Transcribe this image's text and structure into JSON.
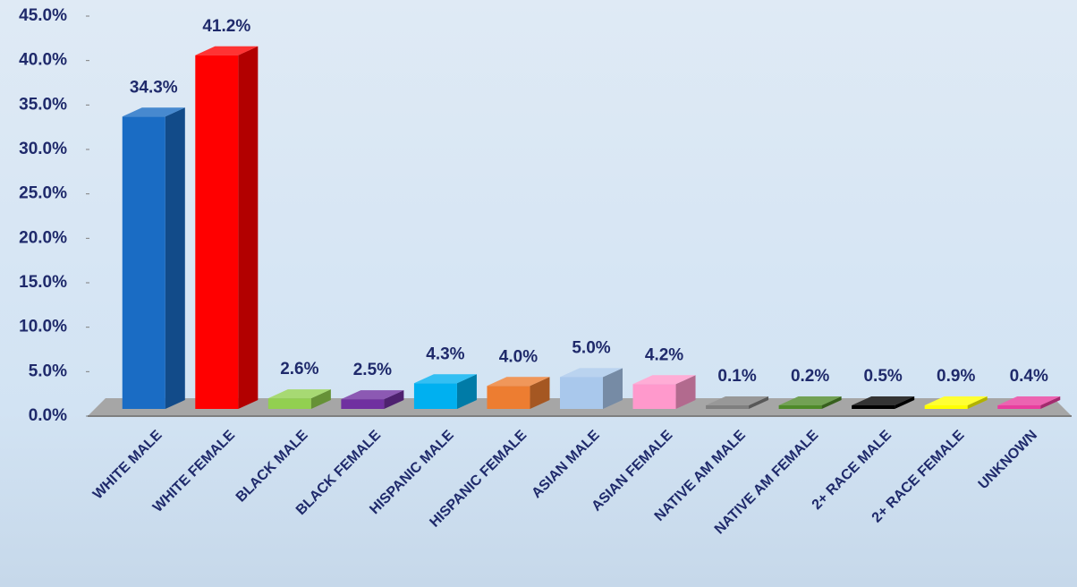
{
  "chart_data": {
    "type": "bar",
    "categories": [
      "WHITE MALE",
      "WHITE FEMALE",
      "BLACK MALE",
      "BLACK FEMALE",
      "HISPANIC MALE",
      "HISPANIC FEMALE",
      "ASIAN MALE",
      "ASIAN FEMALE",
      "NATIVE AM MALE",
      "NATIVE AM FEMALE",
      "2+ RACE MALE",
      "2+ RACE FEMALE",
      "UNKNOWN"
    ],
    "values": [
      34.3,
      41.2,
      2.6,
      2.5,
      4.3,
      4.0,
      5.0,
      4.2,
      0.1,
      0.2,
      0.5,
      0.9,
      0.4
    ],
    "value_labels": [
      "34.3%",
      "41.2%",
      "2.6%",
      "2.5%",
      "4.3%",
      "4.0%",
      "5.0%",
      "4.2%",
      "0.1%",
      "0.2%",
      "0.5%",
      "0.9%",
      "0.4%"
    ],
    "colors": [
      "#1a6cc4",
      "#ff0000",
      "#92d050",
      "#7030a0",
      "#00b0f0",
      "#ed7d31",
      "#a9c8ec",
      "#ff99cc",
      "#7f7f7f",
      "#4f8a2a",
      "#000000",
      "#ffff00",
      "#e83e9e"
    ],
    "ylim": [
      0,
      45
    ],
    "yticks": [
      {
        "value": 0,
        "label": "0.0%"
      },
      {
        "value": 5,
        "label": "5.0%"
      },
      {
        "value": 10,
        "label": "10.0%"
      },
      {
        "value": 15,
        "label": "15.0%"
      },
      {
        "value": 20,
        "label": "20.0%"
      },
      {
        "value": 25,
        "label": "25.0%"
      },
      {
        "value": 30,
        "label": "30.0%"
      },
      {
        "value": 35,
        "label": "35.0%"
      },
      {
        "value": 40,
        "label": "40.0%"
      },
      {
        "value": 45,
        "label": "45.0%"
      }
    ],
    "grid": false
  }
}
